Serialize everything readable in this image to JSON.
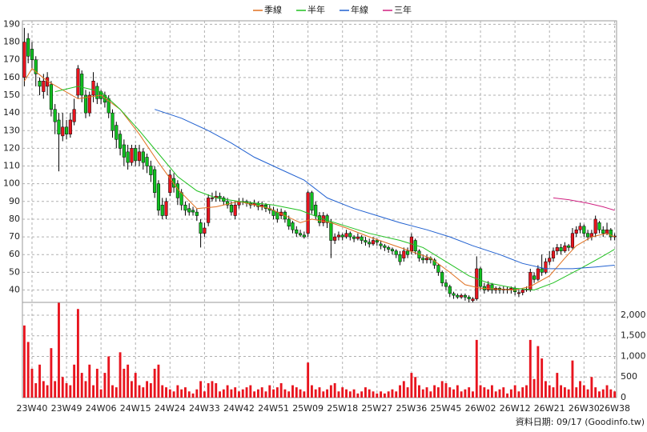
{
  "chart_data": [
    {
      "type": "candlestick",
      "categories": [
        null,
        null,
        "23W40",
        null,
        null,
        null,
        null,
        null,
        null,
        null,
        null,
        "23W49",
        null,
        null,
        null,
        null,
        null,
        null,
        null,
        null,
        "24W06",
        null,
        null,
        null,
        null,
        null,
        null,
        null,
        null,
        "24W15",
        null,
        null,
        null,
        null,
        null,
        null,
        null,
        null,
        "24W24",
        null,
        null,
        null,
        null,
        null,
        null,
        null,
        null,
        "24W33",
        null,
        null,
        null,
        null,
        null,
        null,
        null,
        null,
        "24W42",
        null,
        null,
        null,
        null,
        null,
        null,
        null,
        null,
        "24W51",
        null,
        null,
        null,
        null,
        null,
        null,
        null,
        null,
        "25W09",
        null,
        null,
        null,
        null,
        null,
        null,
        null,
        null,
        "25W18",
        null,
        null,
        null,
        null,
        null,
        null,
        null,
        null,
        "25W27",
        null,
        null,
        null,
        null,
        null,
        null,
        null,
        null,
        "25W36",
        null,
        null,
        null,
        null,
        null,
        null,
        null,
        null,
        "25W45",
        null,
        null,
        null,
        null,
        null,
        null,
        null,
        null,
        "26W02",
        null,
        null,
        null,
        null,
        null,
        null,
        null,
        null,
        "26W12",
        null,
        null,
        null,
        null,
        null,
        null,
        null,
        null,
        "26W21",
        null,
        null,
        null,
        null,
        null,
        null,
        null,
        null,
        "26W30",
        null,
        null,
        null,
        null,
        null,
        null,
        null,
        "26W38"
      ],
      "open": [
        160,
        182,
        176,
        170,
        158,
        152,
        155,
        156,
        142,
        136,
        127,
        132,
        128,
        135,
        150,
        162,
        150,
        140,
        150,
        155,
        152,
        150,
        148,
        140,
        133,
        128,
        122,
        118,
        112,
        120,
        113,
        118,
        115,
        110,
        108,
        100,
        88,
        82,
        95,
        103,
        100,
        95,
        88,
        86,
        85,
        84,
        78,
        72,
        78,
        92,
        92,
        93,
        92,
        90,
        88,
        82,
        88,
        90,
        90,
        89,
        88,
        89,
        87,
        88,
        86,
        85,
        84,
        82,
        84,
        80,
        78,
        74,
        72,
        71,
        72,
        95,
        88,
        82,
        78,
        82,
        78,
        68,
        70,
        71,
        70,
        72,
        70,
        69,
        70,
        68,
        67,
        66,
        68,
        66,
        65,
        64,
        63,
        62,
        60,
        58,
        62,
        62,
        68,
        62,
        58,
        57,
        58,
        57,
        54,
        50,
        44,
        42,
        38,
        37,
        36,
        37,
        36,
        34,
        35,
        52,
        42,
        40,
        43,
        40,
        41,
        40,
        40.5,
        40,
        41,
        38,
        38.5,
        40,
        40,
        48,
        46,
        52,
        50,
        56,
        58,
        62,
        64,
        62,
        65,
        64,
        72,
        74,
        76,
        72,
        70,
        72,
        78,
        74,
        72,
        74,
        70
      ],
      "high": [
        188,
        185,
        180,
        172,
        160,
        162,
        163,
        158,
        145,
        140,
        140,
        136,
        140,
        148,
        167,
        164,
        153,
        152,
        163,
        157,
        153,
        152,
        150,
        142,
        135,
        130,
        125,
        122,
        122,
        122,
        122,
        120,
        117,
        113,
        110,
        102,
        92,
        92,
        108,
        106,
        102,
        97,
        90,
        89,
        87,
        86,
        80,
        78,
        94,
        95,
        96,
        95,
        93,
        92,
        90,
        90,
        92,
        92,
        91,
        90,
        91,
        90,
        90,
        89,
        88,
        87,
        86,
        86,
        85,
        82,
        79,
        76,
        74,
        73,
        96,
        96,
        90,
        84,
        84,
        83,
        80,
        72,
        73,
        72,
        74,
        73,
        71,
        72,
        71,
        70,
        69,
        70,
        69,
        68,
        66,
        65,
        64,
        63,
        62,
        64,
        64,
        72,
        69,
        63,
        60,
        60,
        59,
        58,
        55,
        51,
        46,
        43,
        39,
        38,
        38,
        38,
        37,
        36,
        59,
        53,
        44,
        45,
        44,
        42,
        42,
        42,
        42,
        42,
        42,
        40,
        41,
        42,
        52,
        50,
        54,
        60,
        58,
        62,
        64,
        66,
        66,
        67,
        66,
        75,
        76,
        78,
        77,
        74,
        74,
        82,
        79,
        76,
        78,
        75,
        72
      ],
      "low": [
        155,
        168,
        165,
        155,
        150,
        148,
        150,
        138,
        128,
        107,
        124,
        125,
        126,
        133,
        148,
        146,
        137,
        138,
        146,
        145,
        145,
        143,
        137,
        126,
        120,
        116,
        110,
        108,
        110,
        110,
        110,
        108,
        106,
        101,
        92,
        82,
        80,
        80,
        93,
        95,
        88,
        85,
        82,
        82,
        82,
        79,
        64,
        70,
        76,
        90,
        90,
        90,
        88,
        86,
        82,
        80,
        86,
        88,
        87,
        86,
        87,
        85,
        85,
        84,
        83,
        80,
        78,
        80,
        78,
        74,
        72,
        70,
        70,
        69,
        70,
        83,
        80,
        76,
        76,
        75,
        58,
        66,
        68,
        68,
        69,
        68,
        67,
        68,
        66,
        65,
        64,
        65,
        65,
        63,
        62,
        61,
        60,
        58,
        54,
        56,
        58,
        60,
        60,
        56,
        55,
        55,
        55,
        52,
        48,
        42,
        40,
        36,
        35,
        35,
        35,
        34,
        33,
        33,
        34,
        40,
        38,
        39,
        38,
        38,
        38,
        38,
        38,
        38,
        37,
        36,
        37,
        39,
        39,
        44,
        45,
        48,
        49,
        54,
        56,
        60,
        60,
        61,
        62,
        63,
        70,
        72,
        70,
        68,
        68,
        70,
        72,
        70,
        71,
        68,
        68
      ],
      "close": [
        180,
        172,
        170,
        162,
        155,
        158,
        160,
        142,
        135,
        128,
        132,
        128,
        136,
        142,
        165,
        150,
        140,
        150,
        158,
        148,
        148,
        146,
        140,
        130,
        125,
        120,
        115,
        112,
        120,
        113,
        118,
        112,
        110,
        105,
        95,
        85,
        82,
        90,
        105,
        98,
        92,
        88,
        85,
        84,
        84,
        82,
        72,
        75,
        92,
        92,
        93,
        92,
        90,
        88,
        84,
        88,
        90,
        90,
        89,
        88,
        89,
        87,
        88,
        86,
        85,
        82,
        80,
        84,
        80,
        76,
        74,
        72,
        71,
        70,
        95,
        85,
        82,
        78,
        82,
        78,
        68,
        70,
        71,
        70,
        72,
        70,
        69,
        70,
        68,
        67,
        66,
        68,
        67,
        65,
        64,
        63,
        62,
        60,
        56,
        62,
        60,
        70,
        62,
        58,
        57,
        58,
        57,
        54,
        50,
        44,
        42,
        38,
        37,
        36,
        37,
        36,
        35,
        35,
        52,
        42,
        40,
        43,
        40,
        41,
        40,
        40.5,
        40,
        41,
        39,
        38.5,
        40,
        40.5,
        50,
        46,
        52,
        50,
        56,
        58,
        62,
        64,
        62,
        65,
        64,
        72,
        74,
        76,
        72,
        70,
        72,
        80,
        74,
        72,
        74,
        70,
        70.5
      ],
      "up_color": "#e8141e",
      "down_color": "#10c020",
      "ylim": [
        33,
        192
      ],
      "yticks": [
        40,
        50,
        60,
        70,
        80,
        90,
        100,
        110,
        120,
        130,
        140,
        150,
        160,
        170,
        180,
        190
      ],
      "grid": true,
      "legend": "top",
      "series": [
        {
          "name": "季線",
          "color": "#e07020",
          "x": [
            0,
            2,
            6,
            14,
            20,
            25,
            30,
            35,
            40,
            45,
            50,
            56,
            64,
            72,
            75,
            80,
            84,
            90,
            98,
            106,
            111,
            115,
            119,
            128,
            132,
            137,
            141,
            144,
            148,
            152,
            154
          ],
          "values": [
            158,
            165,
            158,
            148,
            150,
            142,
            128,
            112,
            97,
            86,
            87,
            90,
            86,
            78,
            80,
            78,
            75,
            70,
            64,
            58,
            50,
            43,
            41,
            40,
            42,
            48,
            58,
            65,
            70,
            72,
            70
          ]
        },
        {
          "name": "半年",
          "color": "#20c020",
          "x": [
            8,
            14,
            20,
            25,
            30,
            35,
            40,
            45,
            50,
            56,
            65,
            72,
            78,
            84,
            90,
            98,
            104,
            110,
            116,
            121,
            128,
            133,
            138,
            145,
            150,
            154
          ],
          "values": [
            152,
            155,
            152,
            142,
            130,
            117,
            104,
            96,
            92,
            90,
            88,
            85,
            80,
            76,
            72,
            68,
            64,
            56,
            48,
            44,
            41,
            40,
            44,
            52,
            58,
            63
          ]
        },
        {
          "name": "年線",
          "color": "#2060d0",
          "x": [
            34,
            41,
            48,
            54,
            60,
            67,
            73,
            79,
            86,
            92,
            98,
            105,
            111,
            117,
            124,
            130,
            136,
            143,
            149,
            154
          ],
          "values": [
            142,
            137,
            130,
            123,
            115,
            108,
            102,
            92,
            86,
            82,
            78,
            74,
            70,
            65,
            60,
            55,
            52,
            52,
            53,
            54
          ]
        },
        {
          "name": "三年",
          "color": "#d02080",
          "x": [
            138,
            142,
            147,
            151,
            154
          ],
          "values": [
            92,
            91,
            89,
            87,
            85
          ]
        }
      ]
    },
    {
      "type": "bar",
      "values": [
        1750,
        1350,
        700,
        350,
        800,
        400,
        300,
        1200,
        400,
        2300,
        500,
        350,
        300,
        800,
        2150,
        600,
        400,
        800,
        300,
        700,
        200,
        600,
        1000,
        300,
        250,
        1100,
        700,
        800,
        400,
        600,
        300,
        250,
        400,
        350,
        700,
        800,
        300,
        250,
        200,
        150,
        300,
        200,
        250,
        150,
        100,
        200,
        400,
        150,
        350,
        400,
        350,
        150,
        200,
        300,
        200,
        250,
        150,
        200,
        250,
        300,
        150,
        200,
        250,
        150,
        300,
        200,
        250,
        350,
        200,
        150,
        300,
        250,
        200,
        150,
        850,
        300,
        200,
        250,
        150,
        200,
        300,
        350,
        150,
        250,
        200,
        150,
        200,
        100,
        150,
        250,
        200,
        150,
        100,
        150,
        100,
        150,
        200,
        150,
        300,
        400,
        250,
        600,
        500,
        300,
        200,
        250,
        150,
        300,
        250,
        400,
        350,
        250,
        200,
        300,
        150,
        200,
        250,
        150,
        1400,
        300,
        250,
        200,
        300,
        150,
        200,
        250,
        100,
        200,
        300,
        150,
        250,
        300,
        1400,
        450,
        1250,
        950,
        400,
        300,
        250,
        600,
        300,
        250,
        200,
        900,
        250,
        400,
        300,
        200,
        500,
        250,
        150,
        200,
        300,
        200,
        150
      ],
      "color": "#e8141e",
      "ylim": [
        0,
        2310
      ],
      "yticks": [
        0,
        500,
        {
          "value": 1000,
          "label": "1,000"
        },
        {
          "value": 1500,
          "label": "1,500"
        },
        {
          "value": 2000,
          "label": "2,000"
        }
      ],
      "source": "資料日期: 09/17  (Goodinfo.tw)"
    }
  ]
}
